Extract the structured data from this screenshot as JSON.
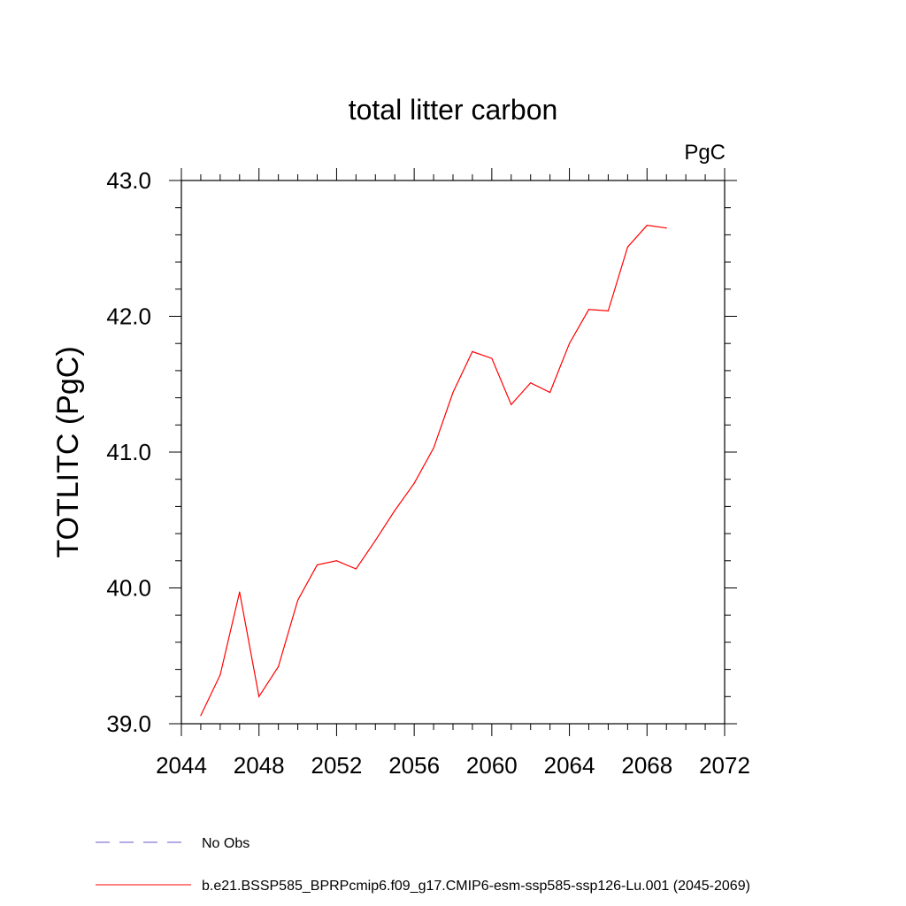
{
  "chart_data": {
    "type": "line",
    "title": "total litter carbon",
    "units_label": "PgC",
    "ylabel": "TOTLITC  (PgC)",
    "xlabel": "",
    "xlim": [
      2044,
      2072
    ],
    "ylim": [
      39.0,
      43.0
    ],
    "x_ticks": [
      2044,
      2048,
      2052,
      2056,
      2060,
      2064,
      2068,
      2072
    ],
    "x_tick_labels": [
      "2044",
      "2048",
      "2052",
      "2056",
      "2060",
      "2064",
      "2068",
      "2072"
    ],
    "y_ticks": [
      39.0,
      40.0,
      41.0,
      42.0,
      43.0
    ],
    "y_tick_labels": [
      "39.0",
      "40.0",
      "41.0",
      "42.0",
      "43.0"
    ],
    "grid": false,
    "legend_position": "bottom",
    "series": [
      {
        "name": "b.e21.BSSP585_BPRPcmip6.f09_g17.CMIP6-esm-ssp585-ssp126-Lu.001 (2045-2069)",
        "color": "#ff0000",
        "line_style": "solid",
        "x": [
          2045,
          2046,
          2047,
          2048,
          2049,
          2050,
          2051,
          2052,
          2053,
          2054,
          2055,
          2056,
          2057,
          2058,
          2059,
          2060,
          2061,
          2062,
          2063,
          2064,
          2065,
          2066,
          2067,
          2068,
          2069
        ],
        "values": [
          39.06,
          39.36,
          39.97,
          39.2,
          39.42,
          39.91,
          40.17,
          40.2,
          40.14,
          40.35,
          40.57,
          40.77,
          41.03,
          41.44,
          41.74,
          41.69,
          41.35,
          41.51,
          41.44,
          41.8,
          42.05,
          42.04,
          42.51,
          42.67,
          42.65
        ]
      }
    ],
    "legend": [
      {
        "label": "No Obs",
        "color": "#6a5acd",
        "line_style": "dashed"
      },
      {
        "label": "b.e21.BSSP585_BPRPcmip6.f09_g17.CMIP6-esm-ssp585-ssp126-Lu.001 (2045-2069)",
        "color": "#ff0000",
        "line_style": "solid"
      }
    ]
  }
}
